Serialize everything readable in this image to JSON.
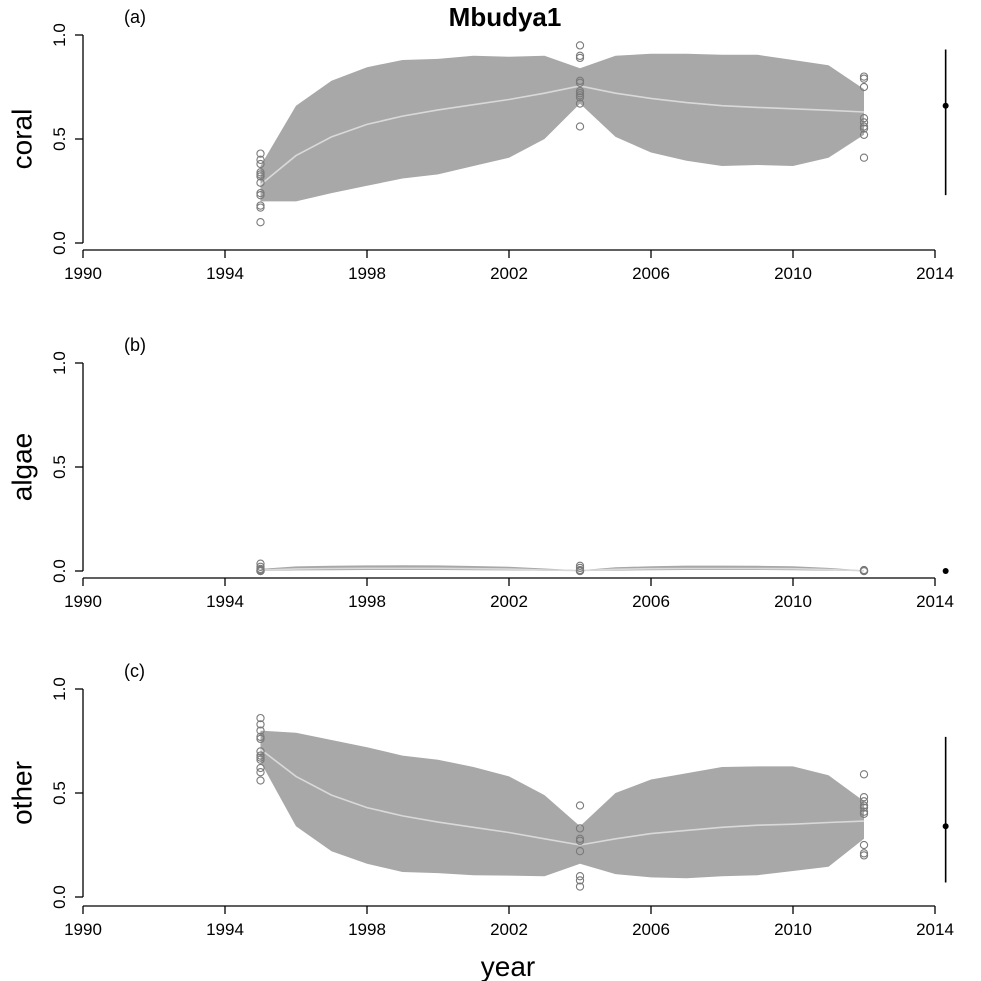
{
  "title": "Mbudya1",
  "xlabel": "year",
  "colors": {
    "band": "#a8a8a8",
    "mean_line": "#d9d9d9",
    "points": "#7a7a7a",
    "summary": "#000000"
  },
  "chart_data": [
    {
      "type": "area",
      "panel_label": "(a)",
      "ylabel": "coral",
      "xlim": [
        1990,
        2014
      ],
      "ylim": [
        0,
        1
      ],
      "xticks": [
        "1990",
        "1994",
        "1998",
        "2002",
        "2006",
        "2010",
        "2014"
      ],
      "yticks": [
        "0.0",
        "0.5",
        "1.0"
      ],
      "band_x": [
        1995,
        1996,
        1997,
        1998,
        1999,
        2000,
        2001,
        2002,
        2003,
        2004,
        2005,
        2006,
        2007,
        2008,
        2009,
        2010,
        2011,
        2012
      ],
      "band_upper": [
        0.37,
        0.66,
        0.78,
        0.845,
        0.88,
        0.885,
        0.9,
        0.895,
        0.9,
        0.84,
        0.9,
        0.91,
        0.91,
        0.905,
        0.905,
        0.88,
        0.855,
        0.74
      ],
      "band_lower": [
        0.2,
        0.2,
        0.24,
        0.275,
        0.31,
        0.33,
        0.37,
        0.41,
        0.5,
        0.67,
        0.51,
        0.435,
        0.395,
        0.37,
        0.375,
        0.37,
        0.41,
        0.52
      ],
      "mean": [
        0.28,
        0.42,
        0.51,
        0.57,
        0.61,
        0.64,
        0.665,
        0.69,
        0.72,
        0.755,
        0.72,
        0.695,
        0.675,
        0.66,
        0.652,
        0.645,
        0.638,
        0.63
      ],
      "points": [
        {
          "x": 1995,
          "values": [
            0.43,
            0.4,
            0.38,
            0.34,
            0.33,
            0.32,
            0.29,
            0.24,
            0.23,
            0.18,
            0.17,
            0.1
          ]
        },
        {
          "x": 2004,
          "values": [
            0.95,
            0.9,
            0.89,
            0.78,
            0.77,
            0.73,
            0.72,
            0.71,
            0.7,
            0.67,
            0.56
          ]
        },
        {
          "x": 2012,
          "values": [
            0.8,
            0.79,
            0.75,
            0.6,
            0.58,
            0.56,
            0.55,
            0.52,
            0.41
          ]
        }
      ],
      "summary": {
        "x": 2014.3,
        "mean": 0.66,
        "low": 0.23,
        "high": 0.93
      }
    },
    {
      "type": "area",
      "panel_label": "(b)",
      "ylabel": "algae",
      "xlim": [
        1990,
        2014
      ],
      "ylim": [
        0,
        1
      ],
      "xticks": [
        "1990",
        "1994",
        "1998",
        "2002",
        "2006",
        "2010",
        "2014"
      ],
      "yticks": [
        "0.0",
        "0.5",
        "1.0"
      ],
      "band_x": [
        1995,
        1996,
        1997,
        1998,
        1999,
        2000,
        2001,
        2002,
        2003,
        2004,
        2005,
        2006,
        2007,
        2008,
        2009,
        2010,
        2011,
        2012
      ],
      "band_upper": [
        0.01,
        0.022,
        0.025,
        0.027,
        0.028,
        0.027,
        0.024,
        0.02,
        0.012,
        0.004,
        0.018,
        0.023,
        0.026,
        0.026,
        0.025,
        0.023,
        0.015,
        0.003
      ],
      "band_lower": [
        0,
        0.003,
        0.004,
        0.005,
        0.005,
        0.005,
        0.004,
        0.003,
        0.001,
        0,
        0.002,
        0.004,
        0.005,
        0.005,
        0.005,
        0.004,
        0.002,
        0
      ],
      "mean": [
        0.004,
        0.01,
        0.012,
        0.013,
        0.013,
        0.013,
        0.011,
        0.009,
        0.005,
        0.002,
        0.008,
        0.011,
        0.012,
        0.012,
        0.012,
        0.011,
        0.007,
        0.001
      ],
      "points": [
        {
          "x": 1995,
          "values": [
            0.035,
            0.02,
            0.01,
            0.005,
            0,
            0,
            0,
            0
          ]
        },
        {
          "x": 2004,
          "values": [
            0.025,
            0.015,
            0.005,
            0,
            0,
            0
          ]
        },
        {
          "x": 2012,
          "values": [
            0.005,
            0,
            0,
            0,
            0,
            0
          ]
        }
      ],
      "summary": {
        "x": 2014.3,
        "mean": 0.0,
        "low": 0.0,
        "high": 0.0
      }
    },
    {
      "type": "area",
      "panel_label": "(c)",
      "ylabel": "other",
      "xlim": [
        1990,
        2014
      ],
      "ylim": [
        0,
        1
      ],
      "xticks": [
        "1990",
        "1994",
        "1998",
        "2002",
        "2006",
        "2010",
        "2014"
      ],
      "yticks": [
        "0.0",
        "0.5",
        "1.0"
      ],
      "band_x": [
        1995,
        1996,
        1997,
        1998,
        1999,
        2000,
        2001,
        2002,
        2003,
        2004,
        2005,
        2006,
        2007,
        2008,
        2009,
        2010,
        2011,
        2012
      ],
      "band_upper": [
        0.8,
        0.79,
        0.755,
        0.72,
        0.68,
        0.66,
        0.625,
        0.58,
        0.49,
        0.34,
        0.5,
        0.565,
        0.595,
        0.625,
        0.628,
        0.628,
        0.585,
        0.46
      ],
      "band_lower": [
        0.65,
        0.34,
        0.22,
        0.16,
        0.12,
        0.115,
        0.105,
        0.103,
        0.1,
        0.16,
        0.11,
        0.094,
        0.09,
        0.1,
        0.105,
        0.125,
        0.145,
        0.28
      ],
      "mean": [
        0.71,
        0.58,
        0.49,
        0.43,
        0.39,
        0.36,
        0.335,
        0.31,
        0.28,
        0.25,
        0.28,
        0.305,
        0.32,
        0.335,
        0.345,
        0.35,
        0.358,
        0.365
      ],
      "points": [
        {
          "x": 1995,
          "values": [
            0.86,
            0.83,
            0.8,
            0.77,
            0.76,
            0.7,
            0.68,
            0.67,
            0.66,
            0.62,
            0.6,
            0.56
          ]
        },
        {
          "x": 2004,
          "values": [
            0.44,
            0.33,
            0.28,
            0.27,
            0.22,
            0.1,
            0.08,
            0.05
          ]
        },
        {
          "x": 2012,
          "values": [
            0.59,
            0.48,
            0.46,
            0.44,
            0.43,
            0.41,
            0.4,
            0.25,
            0.21,
            0.2
          ]
        }
      ],
      "summary": {
        "x": 2014.3,
        "mean": 0.34,
        "low": 0.07,
        "high": 0.77
      }
    }
  ]
}
